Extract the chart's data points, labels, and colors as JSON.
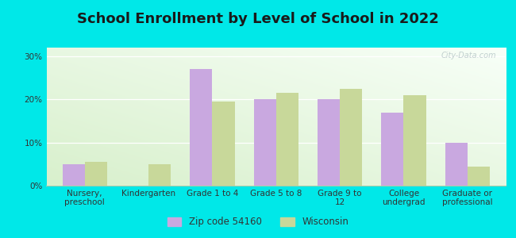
{
  "title": "School Enrollment by Level of School in 2022",
  "categories": [
    "Nursery,\npreschool",
    "Kindergarten",
    "Grade 1 to 4",
    "Grade 5 to 8",
    "Grade 9 to\n12",
    "College\nundergrad",
    "Graduate or\nprofessional"
  ],
  "zip_values": [
    5.0,
    0.0,
    27.0,
    20.0,
    20.0,
    17.0,
    10.0
  ],
  "wi_values": [
    5.5,
    5.0,
    19.5,
    21.5,
    22.5,
    21.0,
    4.5
  ],
  "zip_color": "#c9a8e0",
  "wi_color": "#c8d89a",
  "background_color": "#00e8e8",
  "ylim": [
    0,
    32
  ],
  "yticks": [
    0,
    10,
    20,
    30
  ],
  "legend_labels": [
    "Zip code 54160",
    "Wisconsin"
  ],
  "bar_width": 0.35,
  "title_fontsize": 13,
  "tick_fontsize": 7.5,
  "legend_fontsize": 8.5
}
